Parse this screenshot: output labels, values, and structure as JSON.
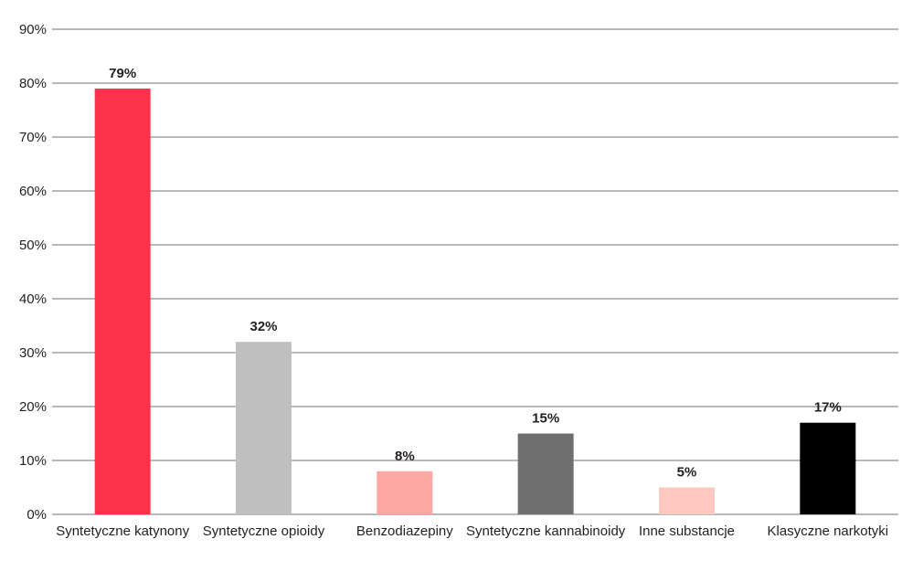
{
  "chart_data": {
    "type": "bar",
    "categories": [
      "Syntetyczne katynony",
      "Syntetyczne opioidy",
      "Benzodiazepiny",
      "Syntetyczne kannabinoidy",
      "Inne substancje",
      "Klasyczne narkotyki"
    ],
    "values": [
      79,
      32,
      8,
      15,
      5,
      17
    ],
    "data_labels": [
      "79%",
      "32%",
      "8%",
      "15%",
      "5%",
      "17%"
    ],
    "bar_colors": [
      "#fe324b",
      "#bfbfbf",
      "#fea6a3",
      "#6f6f6f",
      "#fec8c1",
      "#000000"
    ],
    "yticks": [
      0,
      10,
      20,
      30,
      40,
      50,
      60,
      70,
      80,
      90
    ],
    "ytick_labels": [
      "0%",
      "10%",
      "20%",
      "30%",
      "40%",
      "50%",
      "60%",
      "70%",
      "80%",
      "90%"
    ],
    "ylim": [
      0,
      90
    ],
    "grid": true,
    "legend": false,
    "title": "",
    "xlabel": "",
    "ylabel": ""
  }
}
